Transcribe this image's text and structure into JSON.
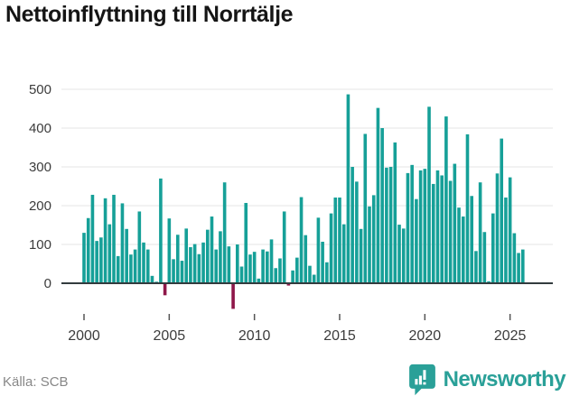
{
  "title": "Nettoinflyttning till Norrtälje",
  "source": "Källa: SCB",
  "logo_text": "Newsworthy",
  "colors": {
    "positive": "#16a098",
    "negative": "#8e1749",
    "grid": "#e4e4e4",
    "axis": "#333b3e",
    "tick": "#555555",
    "text": "#3c3c3c",
    "muted": "#878787",
    "logo": "#2aa098"
  },
  "chart_data": {
    "type": "bar",
    "title": "Nettoinflyttning till Norrtälje",
    "xlabel": "",
    "ylabel": "",
    "period": "quarterly",
    "start": "2000-Q1",
    "end": "2025-Q4",
    "x_tick_labels": [
      2000,
      2005,
      2010,
      2015,
      2020,
      2025
    ],
    "y_ticks": [
      0,
      100,
      200,
      300,
      400,
      500
    ],
    "ylim": [
      -80,
      520
    ],
    "grid": true,
    "legend": false,
    "bar_color": "#16a098",
    "negative_bar_color": "#8e1749",
    "values": [
      130,
      168,
      228,
      109,
      118,
      219,
      152,
      228,
      70,
      206,
      140,
      74,
      87,
      185,
      105,
      87,
      19,
      4,
      270,
      -31,
      167,
      62,
      125,
      58,
      141,
      93,
      101,
      75,
      105,
      138,
      172,
      87,
      134,
      260,
      95,
      -66,
      100,
      43,
      207,
      74,
      81,
      12,
      87,
      82,
      113,
      39,
      64,
      185,
      -6,
      33,
      66,
      222,
      124,
      45,
      22,
      169,
      107,
      54,
      180,
      221,
      221,
      152,
      487,
      300,
      262,
      140,
      385,
      198,
      227,
      452,
      400,
      298,
      300,
      363,
      151,
      141,
      284,
      305,
      217,
      291,
      295,
      455,
      256,
      291,
      278,
      430,
      264,
      308,
      195,
      172,
      384,
      225,
      83,
      260,
      132,
      5,
      180,
      283,
      373,
      221,
      273,
      129,
      78,
      87
    ]
  }
}
